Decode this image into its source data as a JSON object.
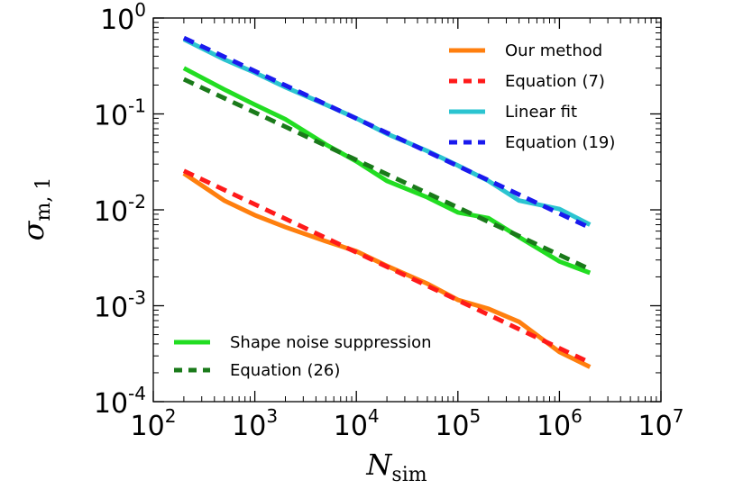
{
  "chart_data": {
    "type": "line",
    "title": "",
    "xscale": "log",
    "yscale": "log",
    "xlabel": {
      "main": "N",
      "sub": "sim"
    },
    "ylabel": {
      "main": "σ",
      "sub": "m, 1"
    },
    "xlim": [
      100,
      10000000
    ],
    "ylim": [
      0.0001,
      1
    ],
    "xticks": [
      {
        "value": 100,
        "base": "10",
        "exp": "2"
      },
      {
        "value": 1000,
        "base": "10",
        "exp": "3"
      },
      {
        "value": 10000,
        "base": "10",
        "exp": "4"
      },
      {
        "value": 100000,
        "base": "10",
        "exp": "5"
      },
      {
        "value": 1000000,
        "base": "10",
        "exp": "6"
      },
      {
        "value": 10000000,
        "base": "10",
        "exp": "7"
      }
    ],
    "yticks": [
      {
        "value": 0.0001,
        "base": "10",
        "exp": "-4"
      },
      {
        "value": 0.001,
        "base": "10",
        "exp": "-3"
      },
      {
        "value": 0.01,
        "base": "10",
        "exp": "-2"
      },
      {
        "value": 0.1,
        "base": "10",
        "exp": "-1"
      },
      {
        "value": 1,
        "base": "10",
        "exp": "0"
      }
    ],
    "series": [
      {
        "name": "Our method",
        "color": "#ff7f0e",
        "dash": "solid",
        "legend": "upper",
        "x": [
          200,
          500,
          1000,
          2000,
          5000,
          10000,
          20000,
          50000,
          100000,
          200000,
          400000,
          1000000,
          2000000
        ],
        "y": [
          0.024,
          0.0125,
          0.0088,
          0.0066,
          0.0047,
          0.0037,
          0.0026,
          0.0017,
          0.00115,
          0.00093,
          0.00068,
          0.00033,
          0.00023
        ]
      },
      {
        "name": "Equation (7)",
        "color": "#ff1a1a",
        "dash": "dashed",
        "legend": "upper",
        "x": [
          200,
          2000000
        ],
        "y": [
          0.0255,
          0.000255
        ]
      },
      {
        "name": "Linear fit",
        "color": "#2bc4d0",
        "dash": "solid",
        "legend": "upper",
        "x": [
          200,
          500,
          1000,
          2000,
          5000,
          10000,
          20000,
          50000,
          100000,
          200000,
          400000,
          1000000,
          2000000
        ],
        "y": [
          0.6,
          0.37,
          0.27,
          0.19,
          0.125,
          0.09,
          0.062,
          0.041,
          0.029,
          0.02,
          0.0125,
          0.0102,
          0.007
        ]
      },
      {
        "name": "Equation (19)",
        "color": "#1a1aee",
        "dash": "dashed",
        "legend": "upper",
        "x": [
          200,
          2000000
        ],
        "y": [
          0.62,
          0.0065
        ]
      },
      {
        "name": "Shape noise suppression",
        "color": "#22dd22",
        "dash": "solid",
        "legend": "lower",
        "x": [
          200,
          500,
          1000,
          2000,
          5000,
          10000,
          20000,
          50000,
          100000,
          200000,
          400000,
          1000000,
          2000000
        ],
        "y": [
          0.3,
          0.18,
          0.125,
          0.088,
          0.048,
          0.032,
          0.02,
          0.0135,
          0.0094,
          0.0082,
          0.0052,
          0.0029,
          0.0022
        ]
      },
      {
        "name": "Equation (26)",
        "color": "#1a7a1a",
        "dash": "dashed",
        "legend": "lower",
        "x": [
          200,
          2000000
        ],
        "y": [
          0.23,
          0.0024
        ]
      }
    ]
  }
}
